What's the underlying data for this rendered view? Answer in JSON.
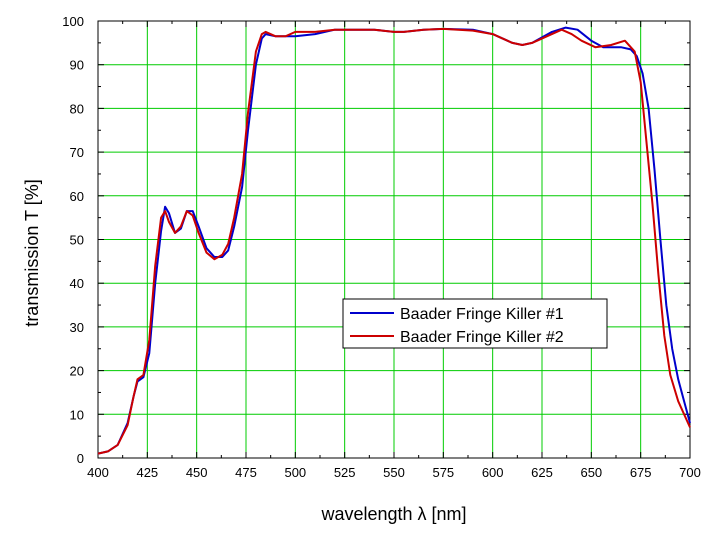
{
  "chart_data": {
    "type": "line",
    "title": "",
    "xlabel": "wavelength λ [nm]",
    "ylabel": "transmission T [%]",
    "xlim": [
      400,
      700
    ],
    "ylim": [
      0,
      100
    ],
    "x_ticks": [
      400,
      425,
      450,
      475,
      500,
      525,
      550,
      575,
      600,
      625,
      650,
      675,
      700
    ],
    "y_ticks": [
      0,
      10,
      20,
      30,
      40,
      50,
      60,
      70,
      80,
      90,
      100
    ],
    "grid": true,
    "grid_color": "#00cc00",
    "legend_position": "center-right",
    "series": [
      {
        "name": "Baader Fringe Killer #1",
        "color": "#0000cc",
        "points": [
          [
            400,
            1
          ],
          [
            405,
            1.5
          ],
          [
            410,
            3
          ],
          [
            415,
            8
          ],
          [
            418,
            14
          ],
          [
            420,
            17.5
          ],
          [
            423,
            18.5
          ],
          [
            426,
            24
          ],
          [
            429,
            40
          ],
          [
            432,
            52
          ],
          [
            434,
            57.5
          ],
          [
            436,
            56
          ],
          [
            439,
            51.5
          ],
          [
            442,
            52.5
          ],
          [
            445,
            56.5
          ],
          [
            448,
            56.5
          ],
          [
            451,
            53
          ],
          [
            455,
            48
          ],
          [
            459,
            46
          ],
          [
            463,
            46
          ],
          [
            466,
            47.5
          ],
          [
            469,
            53
          ],
          [
            473,
            62
          ],
          [
            476,
            75
          ],
          [
            480,
            90
          ],
          [
            483,
            96
          ],
          [
            485,
            97
          ],
          [
            490,
            96.5
          ],
          [
            495,
            96.5
          ],
          [
            500,
            96.5
          ],
          [
            510,
            97
          ],
          [
            520,
            98
          ],
          [
            530,
            98
          ],
          [
            540,
            98
          ],
          [
            550,
            97.5
          ],
          [
            555,
            97.5
          ],
          [
            565,
            98
          ],
          [
            575,
            98.2
          ],
          [
            590,
            98
          ],
          [
            600,
            97
          ],
          [
            610,
            95
          ],
          [
            615,
            94.5
          ],
          [
            620,
            95
          ],
          [
            630,
            97.5
          ],
          [
            637,
            98.5
          ],
          [
            643,
            98
          ],
          [
            650,
            95.5
          ],
          [
            656,
            94
          ],
          [
            665,
            94
          ],
          [
            670,
            93.5
          ],
          [
            673,
            92
          ],
          [
            676,
            88
          ],
          [
            679,
            80
          ],
          [
            682,
            66
          ],
          [
            685,
            50
          ],
          [
            688,
            35
          ],
          [
            691,
            25
          ],
          [
            694,
            18
          ],
          [
            697,
            13
          ],
          [
            700,
            8
          ]
        ]
      },
      {
        "name": "Baader Fringe Killer #2",
        "color": "#cc0000",
        "points": [
          [
            400,
            1
          ],
          [
            405,
            1.5
          ],
          [
            410,
            3
          ],
          [
            415,
            7.5
          ],
          [
            418,
            14
          ],
          [
            420,
            18
          ],
          [
            423,
            19
          ],
          [
            426,
            27
          ],
          [
            429,
            44
          ],
          [
            432,
            55
          ],
          [
            434,
            56.5
          ],
          [
            436,
            54
          ],
          [
            439,
            51.5
          ],
          [
            442,
            53
          ],
          [
            445,
            56.5
          ],
          [
            448,
            55.5
          ],
          [
            451,
            51.5
          ],
          [
            455,
            47
          ],
          [
            459,
            45.5
          ],
          [
            463,
            46.5
          ],
          [
            466,
            49
          ],
          [
            469,
            55
          ],
          [
            473,
            65
          ],
          [
            476,
            79
          ],
          [
            480,
            93
          ],
          [
            483,
            97
          ],
          [
            485,
            97.5
          ],
          [
            490,
            96.5
          ],
          [
            495,
            96.5
          ],
          [
            500,
            97.5
          ],
          [
            510,
            97.5
          ],
          [
            520,
            98
          ],
          [
            530,
            98
          ],
          [
            540,
            98
          ],
          [
            550,
            97.5
          ],
          [
            555,
            97.5
          ],
          [
            565,
            98
          ],
          [
            575,
            98.2
          ],
          [
            590,
            97.8
          ],
          [
            600,
            97
          ],
          [
            610,
            95
          ],
          [
            615,
            94.5
          ],
          [
            620,
            95
          ],
          [
            630,
            97
          ],
          [
            635,
            98
          ],
          [
            640,
            97
          ],
          [
            645,
            95.5
          ],
          [
            652,
            94
          ],
          [
            660,
            94.5
          ],
          [
            667,
            95.5
          ],
          [
            672,
            93
          ],
          [
            675,
            86
          ],
          [
            678,
            72
          ],
          [
            681,
            58
          ],
          [
            684,
            42
          ],
          [
            687,
            28
          ],
          [
            690,
            19
          ],
          [
            694,
            13
          ],
          [
            700,
            7
          ]
        ]
      }
    ]
  }
}
